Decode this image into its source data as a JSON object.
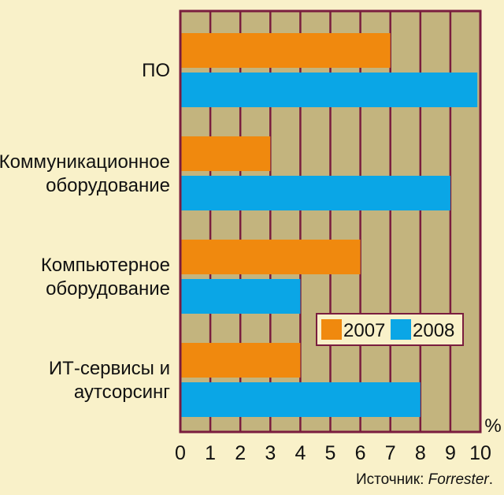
{
  "chart_data": {
    "type": "bar",
    "orientation": "horizontal",
    "categories": [
      [
        "ПО"
      ],
      [
        "Коммуникационное",
        "оборудование"
      ],
      [
        "Компьютерное",
        "оборудование"
      ],
      [
        "ИТ-сервисы и",
        "аутсорсинг"
      ]
    ],
    "series": [
      {
        "name": "2007",
        "color": "#f0890e",
        "values": [
          7,
          3,
          6,
          4
        ]
      },
      {
        "name": "2008",
        "color": "#0aa6e6",
        "values": [
          9.9,
          9,
          4,
          8
        ]
      }
    ],
    "xlim": [
      0,
      10
    ],
    "xticks": [
      0,
      1,
      2,
      3,
      4,
      5,
      6,
      7,
      8,
      9,
      10
    ],
    "unit": "%",
    "grid": true,
    "legend": "lower-right",
    "background_color": "#f9f1c9",
    "plot_background_color": "#c3b47e",
    "frame_color": "#7a1d3e"
  },
  "source": {
    "prefix": "Источник: ",
    "name": "Forrester",
    "suffix": "."
  }
}
